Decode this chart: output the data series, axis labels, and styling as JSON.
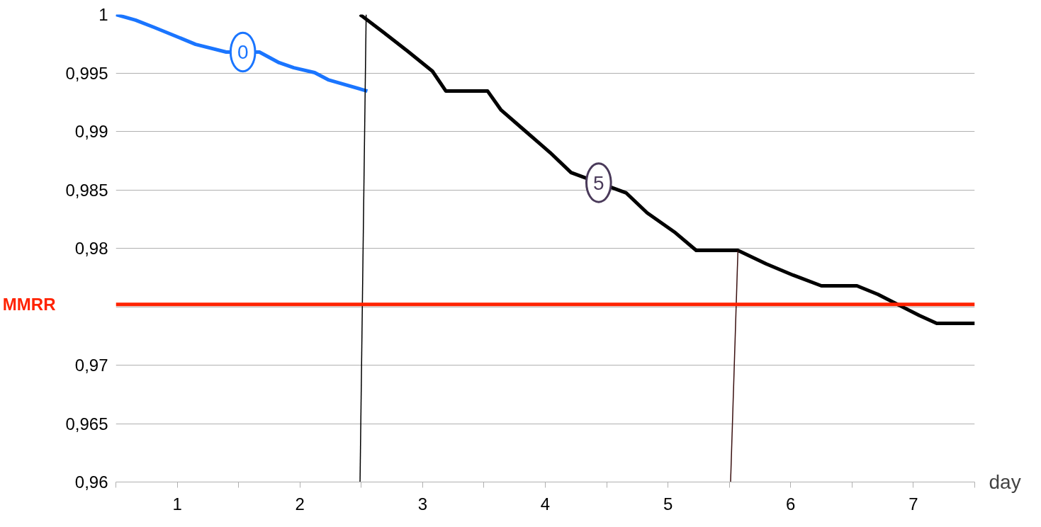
{
  "chart_data": {
    "type": "line",
    "xlabel": "day",
    "xlim": [
      0,
      7
    ],
    "xticks": [
      {
        "value": 0,
        "label": null
      },
      {
        "value": 0.5,
        "label": "1"
      },
      {
        "value": 1,
        "label": null
      },
      {
        "value": 1.5,
        "label": "2"
      },
      {
        "value": 2,
        "label": null
      },
      {
        "value": 2.5,
        "label": "3"
      },
      {
        "value": 3,
        "label": null
      },
      {
        "value": 3.5,
        "label": "4"
      },
      {
        "value": 4,
        "label": null
      },
      {
        "value": 4.5,
        "label": "5"
      },
      {
        "value": 5,
        "label": null
      },
      {
        "value": 5.5,
        "label": "6"
      },
      {
        "value": 6,
        "label": null
      },
      {
        "value": 6.5,
        "label": "7"
      },
      {
        "value": 7,
        "label": null
      }
    ],
    "ylim": [
      0.96,
      1
    ],
    "yticks": [
      {
        "value": 0.96,
        "label": "0,96"
      },
      {
        "value": 0.965,
        "label": "0,965"
      },
      {
        "value": 0.97,
        "label": "0,97"
      },
      {
        "value": 0.975,
        "label": null
      },
      {
        "value": 0.98,
        "label": "0,98"
      },
      {
        "value": 0.985,
        "label": "0,985"
      },
      {
        "value": 0.99,
        "label": "0,99"
      },
      {
        "value": 0.995,
        "label": "0,995"
      },
      {
        "value": 1,
        "label": "1"
      }
    ],
    "grid": "y",
    "line_style": "solid",
    "series": [
      {
        "color": "#1a75ff",
        "x": [
          0,
          0.16,
          0.31,
          0.48,
          0.65,
          0.9,
          1.17,
          1.33,
          1.45,
          1.62,
          1.73,
          2.05
        ],
        "values": [
          1,
          0.99952,
          0.99891,
          0.99818,
          0.99745,
          0.99679,
          0.99679,
          0.99588,
          0.99545,
          0.99503,
          0.99442,
          0.99345
        ]
      },
      {
        "color": "#000000",
        "x": [
          1.99,
          2.18,
          2.38,
          2.58,
          2.69,
          3.03,
          3.14,
          3.34,
          3.54,
          3.71,
          4.16,
          4.33,
          4.56,
          4.73,
          5.07,
          5.3,
          5.52,
          5.75,
          6.04,
          6.21,
          6.38,
          6.55,
          6.69,
          7
        ],
        "values": [
          1,
          0.99848,
          0.99685,
          0.99515,
          0.99345,
          0.99345,
          0.99182,
          0.99,
          0.98818,
          0.98648,
          0.98473,
          0.98303,
          0.98133,
          0.97982,
          0.97982,
          0.97867,
          0.9777,
          0.97679,
          0.97679,
          0.97606,
          0.97515,
          0.97424,
          0.97358,
          0.97358
        ]
      },
      {
        "color": "#000000",
        "x": [
          1.99,
          2.04
        ],
        "values": [
          0.96,
          1
        ]
      },
      {
        "color": "#3a1010",
        "x": [
          5.01,
          5.07
        ],
        "values": [
          0.96,
          0.9798
        ]
      }
    ],
    "ref_lines": [
      {
        "axis": "y",
        "value": 0.9752,
        "label": "MMRR",
        "color": "#ff2200"
      }
    ],
    "annotations": [
      "0",
      "5"
    ]
  }
}
